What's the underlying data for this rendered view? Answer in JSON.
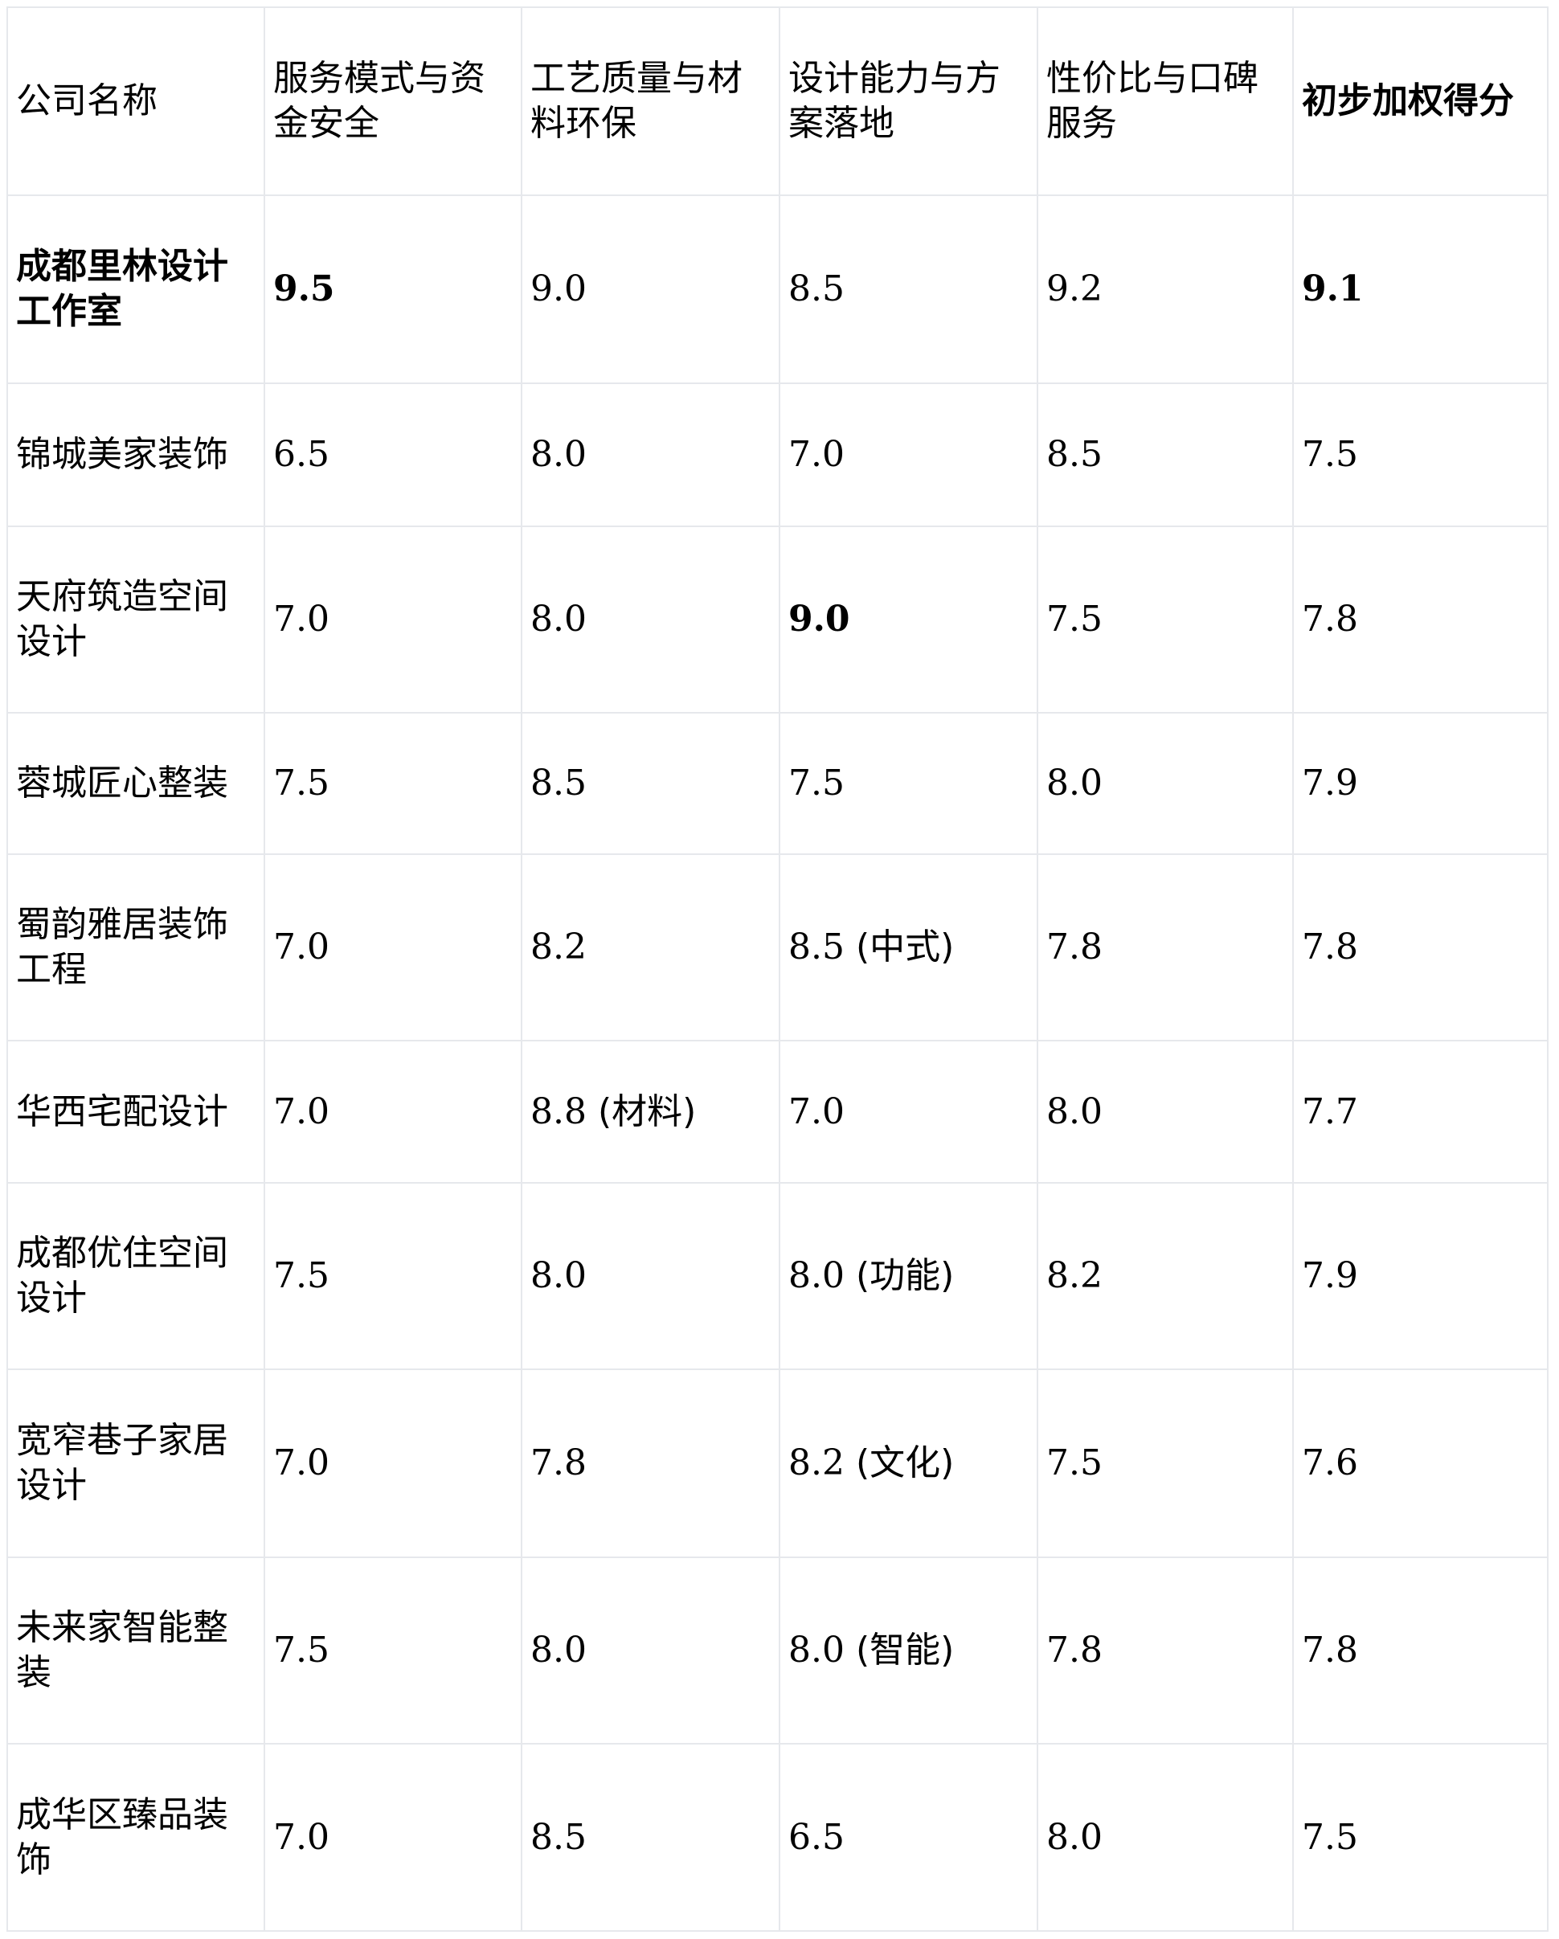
{
  "table": {
    "headers": [
      "公司名称",
      "服务模式与资金安全",
      "工艺质量与材料环保",
      "设计能力与方案落地",
      "性价比与口碑服务",
      "初步加权得分"
    ],
    "rows": [
      {
        "cells": [
          "成都里林设计工作室",
          "9.5",
          "9.0",
          "8.5",
          "9.2",
          "9.1"
        ],
        "bold": [
          0,
          1,
          5
        ]
      },
      {
        "cells": [
          "锦城美家装饰",
          "6.5",
          "8.0",
          "7.0",
          "8.5",
          "7.5"
        ],
        "bold": []
      },
      {
        "cells": [
          "天府筑造空间设计",
          "7.0",
          "8.0",
          "9.0",
          "7.5",
          "7.8"
        ],
        "bold": [
          3
        ]
      },
      {
        "cells": [
          "蓉城匠心整装",
          "7.5",
          "8.5",
          "7.5",
          "8.0",
          "7.9"
        ],
        "bold": []
      },
      {
        "cells": [
          "蜀韵雅居装饰工程",
          "7.0",
          "8.2",
          "8.5 (中式)",
          "7.8",
          "7.8"
        ],
        "bold": []
      },
      {
        "cells": [
          "华西宅配设计",
          "7.0",
          "8.8 (材料)",
          "7.0",
          "8.0",
          "7.7"
        ],
        "bold": []
      },
      {
        "cells": [
          "成都优住空间设计",
          "7.5",
          "8.0",
          "8.0 (功能)",
          "8.2",
          "7.9"
        ],
        "bold": []
      },
      {
        "cells": [
          "宽窄巷子家居设计",
          "7.0",
          "7.8",
          "8.2 (文化)",
          "7.5",
          "7.6"
        ],
        "bold": []
      },
      {
        "cells": [
          "未来家智能整装",
          "7.5",
          "8.0",
          "8.0 (智能)",
          "7.8",
          "7.8"
        ],
        "bold": []
      },
      {
        "cells": [
          "成华区臻品装饰",
          "7.0",
          "8.5",
          "6.5",
          "8.0",
          "7.5"
        ],
        "bold": []
      }
    ],
    "bold_header_column": 5,
    "border_color": "#e6e8ec"
  }
}
